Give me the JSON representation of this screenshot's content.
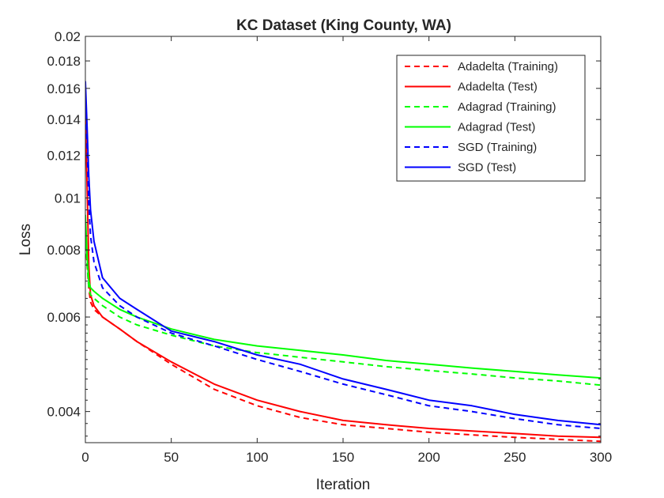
{
  "chart_data": {
    "type": "line",
    "title": "KC Dataset (King County, WA)",
    "xlabel": "Iteration",
    "ylabel": "Loss",
    "xlim": [
      0,
      300
    ],
    "ylim": [
      0.0035,
      0.02
    ],
    "yscale": "log",
    "grid": false,
    "legend_position": "top-right",
    "x_ticks": [
      0,
      50,
      100,
      150,
      200,
      250,
      300
    ],
    "x_tick_labels": [
      "0",
      "50",
      "100",
      "150",
      "200",
      "250",
      "300"
    ],
    "y_ticks": [
      0.004,
      0.006,
      0.008,
      0.01,
      0.012,
      0.014,
      0.016,
      0.018,
      0.02
    ],
    "y_tick_labels": [
      "0.004",
      "0.006",
      "0.008",
      "0.01",
      "0.012",
      "0.014",
      "0.016",
      "0.018",
      "0.02"
    ],
    "series": [
      {
        "name": "Adadelta (Training)",
        "color": "#ff0000",
        "style": "dashed",
        "x": [
          0,
          1,
          2,
          3,
          5,
          10,
          20,
          30,
          50,
          75,
          100,
          125,
          150,
          175,
          200,
          225,
          250,
          275,
          300
        ],
        "y": [
          0.0085,
          0.0075,
          0.0068,
          0.0064,
          0.0062,
          0.006,
          0.0057,
          0.0054,
          0.0049,
          0.0044,
          0.0041,
          0.0039,
          0.00378,
          0.00372,
          0.00366,
          0.00362,
          0.00358,
          0.00355,
          0.00352
        ]
      },
      {
        "name": "Adadelta (Test)",
        "color": "#ff0000",
        "style": "solid",
        "x": [
          0,
          1,
          2,
          3,
          5,
          10,
          20,
          30,
          50,
          75,
          100,
          125,
          150,
          175,
          200,
          225,
          250,
          275,
          300
        ],
        "y": [
          0.0145,
          0.0105,
          0.0075,
          0.0066,
          0.0063,
          0.006,
          0.0057,
          0.0054,
          0.00495,
          0.0045,
          0.0042,
          0.004,
          0.00385,
          0.00378,
          0.00372,
          0.00368,
          0.00364,
          0.0036,
          0.00358
        ]
      },
      {
        "name": "Adagrad (Training)",
        "color": "#00ff00",
        "style": "dashed",
        "x": [
          0,
          1,
          2,
          3,
          5,
          10,
          20,
          30,
          50,
          75,
          100,
          125,
          150,
          175,
          200,
          225,
          250,
          275,
          300
        ],
        "y": [
          0.0089,
          0.0075,
          0.0068,
          0.0066,
          0.0065,
          0.0063,
          0.006,
          0.0058,
          0.00555,
          0.0053,
          0.00515,
          0.00505,
          0.00495,
          0.00485,
          0.00477,
          0.0047,
          0.00462,
          0.00456,
          0.00448
        ]
      },
      {
        "name": "Adagrad (Test)",
        "color": "#00ff00",
        "style": "solid",
        "x": [
          0,
          1,
          2,
          3,
          5,
          10,
          20,
          30,
          50,
          75,
          100,
          125,
          150,
          175,
          200,
          225,
          250,
          275,
          300
        ],
        "y": [
          0.0093,
          0.0078,
          0.007,
          0.0068,
          0.0067,
          0.0065,
          0.0062,
          0.006,
          0.0057,
          0.00545,
          0.0053,
          0.0052,
          0.0051,
          0.00498,
          0.0049,
          0.00482,
          0.00475,
          0.00468,
          0.00462
        ]
      },
      {
        "name": "SGD (Training)",
        "color": "#0000ff",
        "style": "dashed",
        "x": [
          0,
          1,
          2,
          3,
          5,
          10,
          20,
          30,
          50,
          75,
          100,
          125,
          150,
          175,
          200,
          225,
          250,
          275,
          300
        ],
        "y": [
          0.0155,
          0.0125,
          0.0098,
          0.0085,
          0.0076,
          0.0068,
          0.0063,
          0.006,
          0.0056,
          0.0053,
          0.005,
          0.00475,
          0.0045,
          0.0043,
          0.0041,
          0.004,
          0.00388,
          0.00378,
          0.00372
        ]
      },
      {
        "name": "SGD (Test)",
        "color": "#0000ff",
        "style": "solid",
        "x": [
          0,
          1,
          2,
          3,
          5,
          10,
          20,
          30,
          50,
          75,
          100,
          125,
          150,
          175,
          200,
          225,
          250,
          275,
          300
        ],
        "y": [
          0.0165,
          0.0135,
          0.011,
          0.0095,
          0.0083,
          0.0071,
          0.0065,
          0.0062,
          0.00565,
          0.0054,
          0.0051,
          0.0049,
          0.0046,
          0.0044,
          0.0042,
          0.0041,
          0.00395,
          0.00385,
          0.00378
        ]
      }
    ]
  }
}
